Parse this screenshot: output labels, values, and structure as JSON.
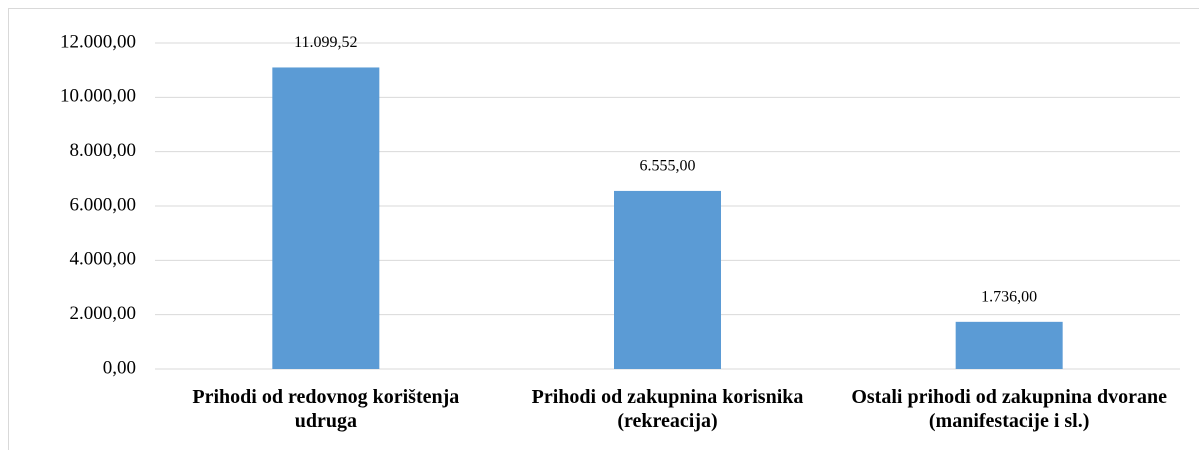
{
  "chart_data": {
    "type": "bar",
    "categories": [
      "Prihodi od redovnog korištenja udruga",
      "Prihodi od zakupnina korisnika (rekreacija)",
      "Ostali prihodi od zakupnina dvorane (manifestacije i sl.)"
    ],
    "values": [
      11099.52,
      6555,
      1736
    ],
    "value_labels": [
      "11.099,52",
      "6.555,00",
      "1.736,00"
    ],
    "color": "#5b9bd5",
    "ylim": [
      0,
      12000
    ],
    "yticks": [
      {
        "value": 0,
        "label": "0,00"
      },
      {
        "value": 2000,
        "label": "2.000,00"
      },
      {
        "value": 4000,
        "label": "4.000,00"
      },
      {
        "value": 6000,
        "label": "6.000,00"
      },
      {
        "value": 8000,
        "label": "8.000,00"
      },
      {
        "value": 10000,
        "label": "10.000,00"
      },
      {
        "value": 12000,
        "label": "12.000,00"
      }
    ],
    "grid": true
  }
}
